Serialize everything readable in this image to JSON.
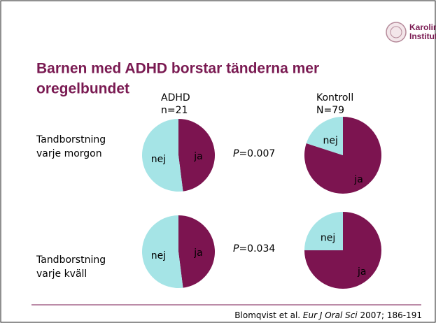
{
  "slide": {
    "title": [
      "Barnen med ADHD borstar tänderna mer",
      "oregelbundet"
    ],
    "logo": [
      "Karolinska",
      "Institutet"
    ],
    "columns": [
      {
        "name": "ADHD",
        "n": "n=21"
      },
      {
        "name": "Kontroll",
        "n": "N=79"
      }
    ],
    "rows": [
      {
        "label": [
          "Tandborstning",
          "varje morgon"
        ],
        "p": {
          "symbol": "P",
          "value": "=0.007"
        }
      },
      {
        "label": [
          "Tandborstning",
          "varje kväll"
        ],
        "p": {
          "symbol": "P",
          "value": "=0.034"
        }
      }
    ],
    "citation": {
      "authors": "Blomqvist et al. ",
      "journal": "Eur J Oral Sci",
      "rest": " 2007; 186-191"
    }
  },
  "chart_data": [
    {
      "type": "pie",
      "categories": [
        "ja",
        "nej"
      ],
      "values": [
        48,
        52
      ],
      "colors": [
        "#7c1450",
        "#a5e4e6"
      ]
    },
    {
      "type": "pie",
      "categories": [
        "ja",
        "nej"
      ],
      "values": [
        80,
        20
      ],
      "colors": [
        "#7c1450",
        "#a5e4e6"
      ]
    },
    {
      "type": "pie",
      "categories": [
        "ja",
        "nej"
      ],
      "values": [
        48,
        52
      ],
      "colors": [
        "#7c1450",
        "#a5e4e6"
      ]
    },
    {
      "type": "pie",
      "categories": [
        "ja",
        "nej"
      ],
      "values": [
        75,
        25
      ],
      "colors": [
        "#7c1450",
        "#a5e4e6"
      ]
    }
  ]
}
